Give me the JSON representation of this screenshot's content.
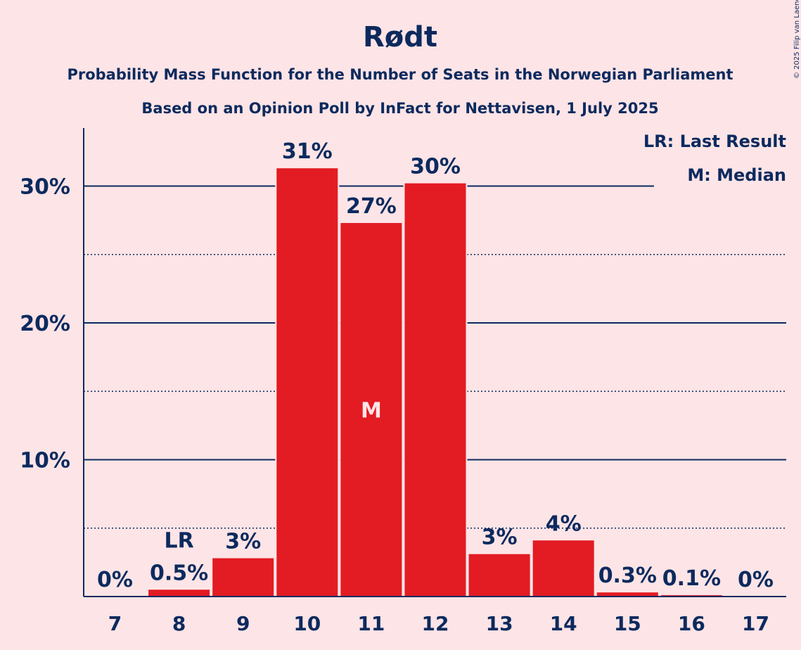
{
  "title": "Rødt",
  "subtitle1": "Probability Mass Function for the Number of Seats in the Norwegian Parliament",
  "subtitle2": "Based on an Opinion Poll by InFact for Nettavisen, 1 July 2025",
  "copyright": "© 2025 Filip van Laenen",
  "legend": {
    "last_result": "LR: Last Result",
    "median": "M: Median"
  },
  "colors": {
    "bar": "#E31B23",
    "text": "#0C2A5E",
    "background": "#FDE4E6"
  },
  "chart_data": {
    "type": "bar",
    "categories": [
      "7",
      "8",
      "9",
      "10",
      "11",
      "12",
      "13",
      "14",
      "15",
      "16",
      "17"
    ],
    "values": [
      0,
      0.5,
      2.8,
      31.3,
      27.3,
      30.2,
      3.1,
      4.1,
      0.3,
      0.1,
      0
    ],
    "data_labels": [
      "0%",
      "0.5%",
      "3%",
      "31%",
      "27%",
      "30%",
      "3%",
      "4%",
      "0.3%",
      "0.1%",
      "0%"
    ],
    "ylim": [
      0,
      34
    ],
    "yticks": [
      10,
      20,
      30
    ],
    "ytick_labels": [
      "10%",
      "20%",
      "30%"
    ],
    "minor_gridlines": [
      5,
      15,
      25
    ],
    "last_result": {
      "category": "8",
      "label": "LR"
    },
    "median": {
      "category": "11",
      "label": "M"
    },
    "grid": true,
    "legend_position": "top-right"
  }
}
